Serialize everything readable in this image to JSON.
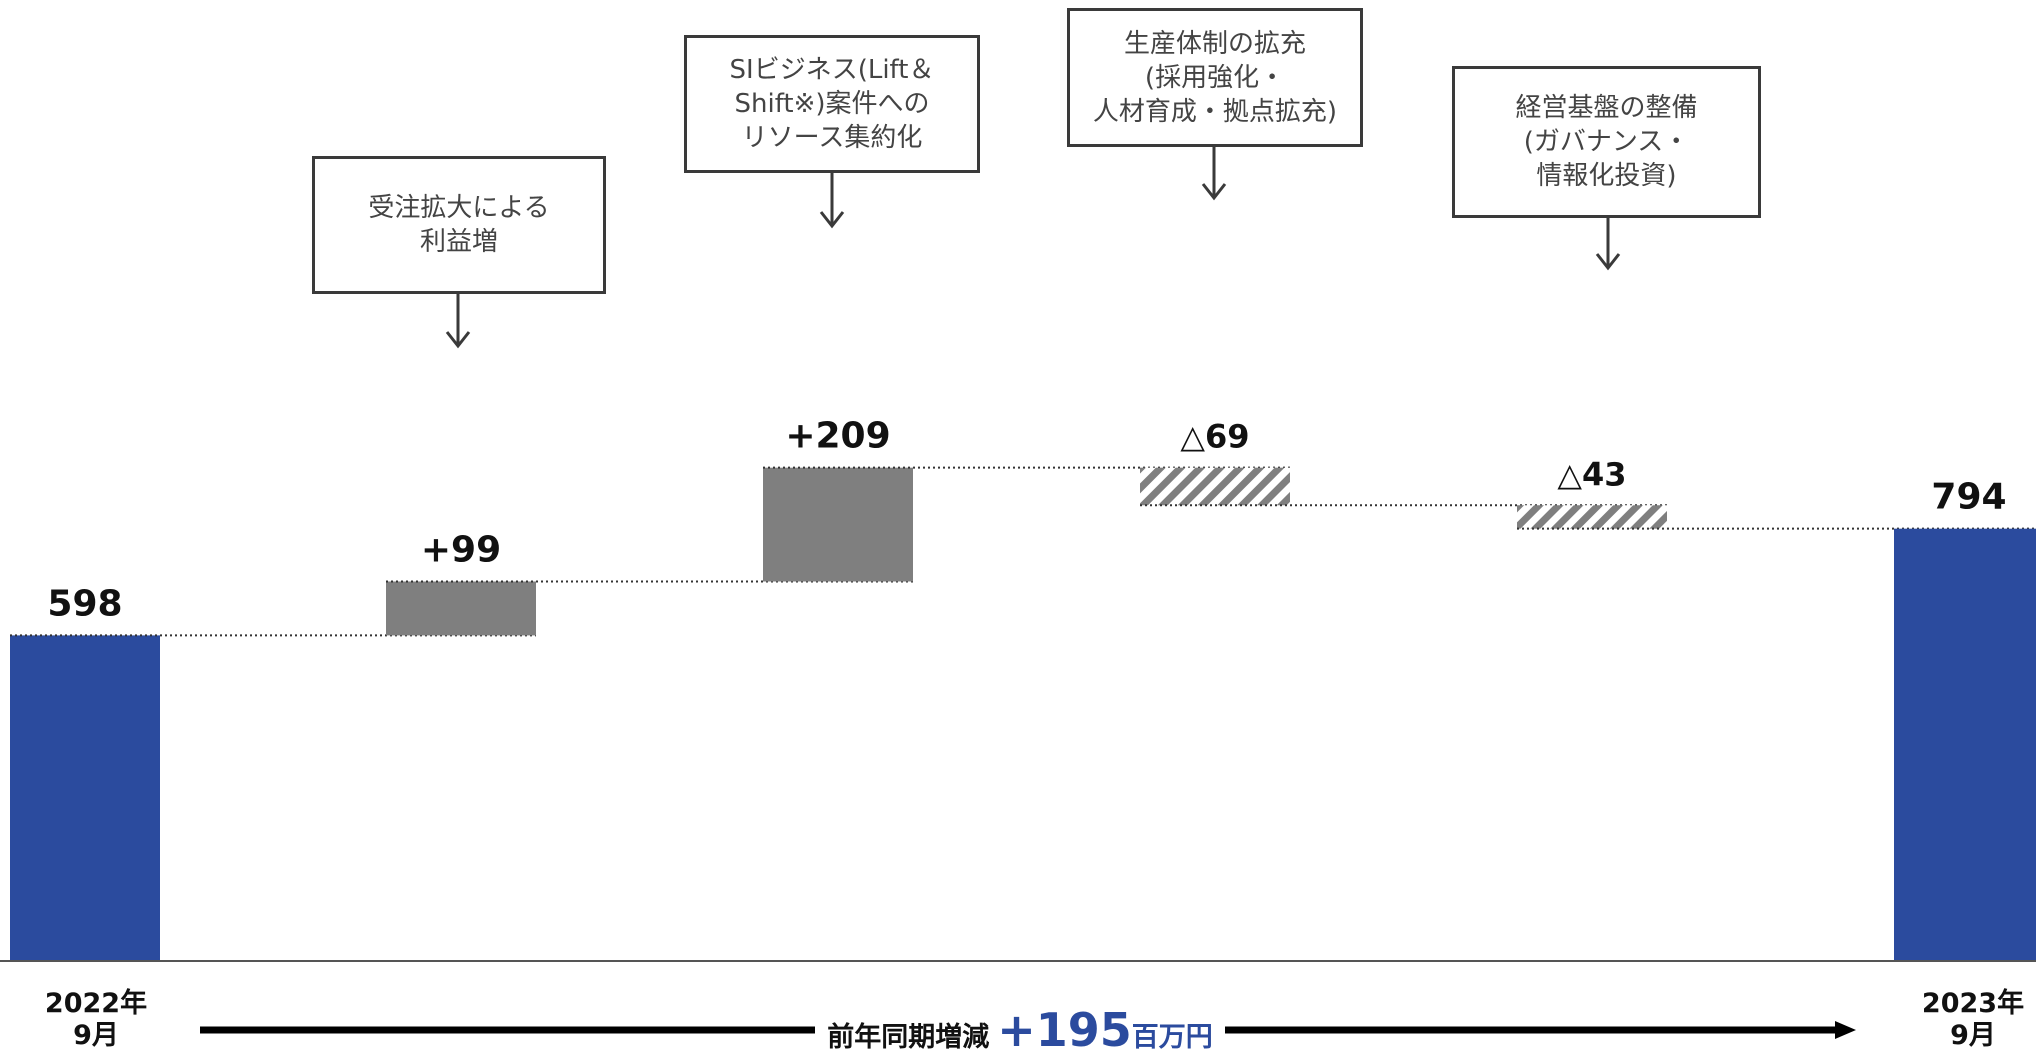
{
  "chart_data": {
    "type": "waterfall",
    "title": "",
    "bars": [
      {
        "label": "2022年9月",
        "label_lines": [
          "2022年",
          "9月"
        ],
        "kind": "total",
        "value": 598,
        "display": "598"
      },
      {
        "label": "受注拡大による利益増",
        "kind": "increase",
        "value": 99,
        "display": "+99"
      },
      {
        "label": "SIビジネス(Lift＆Shift※)案件へのリソース集約化",
        "kind": "increase",
        "value": 209,
        "display": "+209"
      },
      {
        "label": "生産体制の拡充(採用強化・人材育成・拠点拡充)",
        "kind": "decrease",
        "value": -69,
        "display": "△69"
      },
      {
        "label": "経営基盤の整備(ガバナンス・情報化投資)",
        "kind": "decrease",
        "value": -43,
        "display": "△43"
      },
      {
        "label": "2023年9月",
        "label_lines": [
          "2023年",
          "9月"
        ],
        "kind": "total",
        "value": 794,
        "display": "794"
      }
    ],
    "callouts": [
      {
        "lines": [
          "受注拡大による",
          "利益増"
        ]
      },
      {
        "lines": [
          "SIビジネス(Lift＆",
          "Shift※)案件への",
          "リソース集約化"
        ]
      },
      {
        "lines": [
          "生産体制の拡充",
          "(採用強化・",
          "人材育成・拠点拡充)"
        ]
      },
      {
        "lines": [
          "経営基盤の整備",
          "(ガバナンス・",
          "情報化投資)"
        ]
      }
    ],
    "summary": {
      "label": "前年同期増減",
      "value": "+195",
      "unit": "百万円"
    },
    "colors": {
      "total": "#2b4b9e",
      "increase": "#7f7f7f",
      "decrease_hatch": "#7f7f7f"
    },
    "grid": false,
    "legend": "none"
  }
}
